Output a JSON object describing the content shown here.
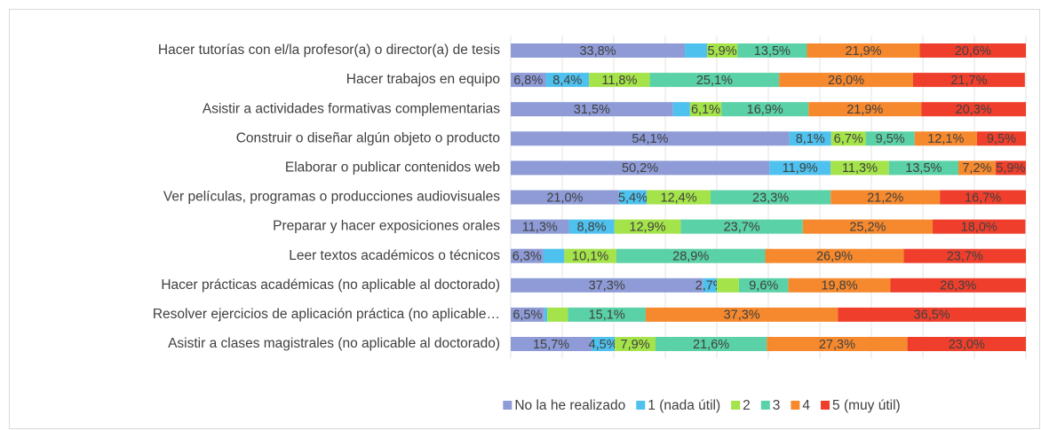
{
  "chart_data": {
    "type": "stacked_barh",
    "categories": [
      "Hacer tutorías con el/la profesor(a) o director(a) de tesis",
      "Hacer trabajos en equipo",
      "Asistir a actividades formativas complementarias",
      "Construir o diseñar algún objeto o producto",
      "Elaborar o publicar contenidos web",
      "Ver películas, programas o producciones audiovisuales",
      "Preparar y hacer exposiciones orales",
      "Leer textos académicos o técnicos",
      "Hacer prácticas académicas (no aplicable al doctorado)",
      "Resolver ejercicios de aplicación práctica (no aplicable…",
      "Asistir a clases magistrales (no aplicable al doctorado)"
    ],
    "series": [
      {
        "name": "No la he realizado",
        "color": "#8e9bd6",
        "values": [
          33.8,
          6.8,
          31.5,
          54.1,
          50.2,
          21.0,
          11.3,
          6.3,
          37.3,
          6.5,
          15.7
        ],
        "value_labels": [
          "33,8%",
          "6,8%",
          "31,5%",
          "54,1%",
          "50,2%",
          "21,0%",
          "11,3%",
          "6,3%",
          "37,3%",
          "6,5%",
          "15,7%"
        ]
      },
      {
        "name": "1 (nada útil)",
        "color": "#4fc1ee",
        "values": [
          4.3,
          8.4,
          3.3,
          8.1,
          11.9,
          5.4,
          8.8,
          4.1,
          2.7,
          0.6,
          4.5
        ],
        "value_labels": [
          null,
          "8,4%",
          null,
          "8,1%",
          "11,9%",
          "5,4%",
          "8,8%",
          null,
          "2,7%",
          null,
          "4,5%"
        ]
      },
      {
        "name": "2",
        "color": "#a4e34a",
        "values": [
          5.9,
          11.8,
          6.1,
          6.7,
          11.3,
          12.4,
          12.9,
          10.1,
          4.3,
          4.0,
          7.9
        ],
        "value_labels": [
          "5,9%",
          "11,8%",
          "6,1%",
          "6,7%",
          "11,3%",
          "12,4%",
          "12,9%",
          "10,1%",
          null,
          null,
          "7,9%"
        ]
      },
      {
        "name": "3",
        "color": "#5ad1a6",
        "values": [
          13.5,
          25.1,
          16.9,
          9.5,
          13.5,
          23.3,
          23.7,
          28.9,
          9.6,
          15.1,
          21.6
        ],
        "value_labels": [
          "13,5%",
          "25,1%",
          "16,9%",
          "9,5%",
          "13,5%",
          "23,3%",
          "23,7%",
          "28,9%",
          "9,6%",
          "15,1%",
          "21,6%"
        ]
      },
      {
        "name": "4",
        "color": "#f6892e",
        "values": [
          21.9,
          26.0,
          21.9,
          12.1,
          7.2,
          21.2,
          25.2,
          26.9,
          19.8,
          37.3,
          27.3
        ],
        "value_labels": [
          "21,9%",
          "26,0%",
          "21,9%",
          "12,1%",
          "7,2%",
          "21,2%",
          "25,2%",
          "26,9%",
          "19,8%",
          "37,3%",
          "27,3%"
        ]
      },
      {
        "name": "5 (muy útil)",
        "color": "#ef3f2c",
        "values": [
          20.6,
          21.7,
          20.3,
          9.5,
          5.9,
          16.7,
          18.0,
          23.7,
          26.3,
          36.5,
          23.0
        ],
        "value_labels": [
          "20,6%",
          "21,7%",
          "20,3%",
          "9,5%",
          "5,9%",
          "16,7%",
          "18,0%",
          "23,7%",
          "26,3%",
          "36,5%",
          "23,0%"
        ]
      }
    ],
    "xlim": [
      0,
      100
    ],
    "xticks": [
      0,
      10,
      20,
      30,
      40,
      50,
      60,
      70,
      80,
      90,
      100
    ],
    "grid": true,
    "legend": "bottom"
  }
}
